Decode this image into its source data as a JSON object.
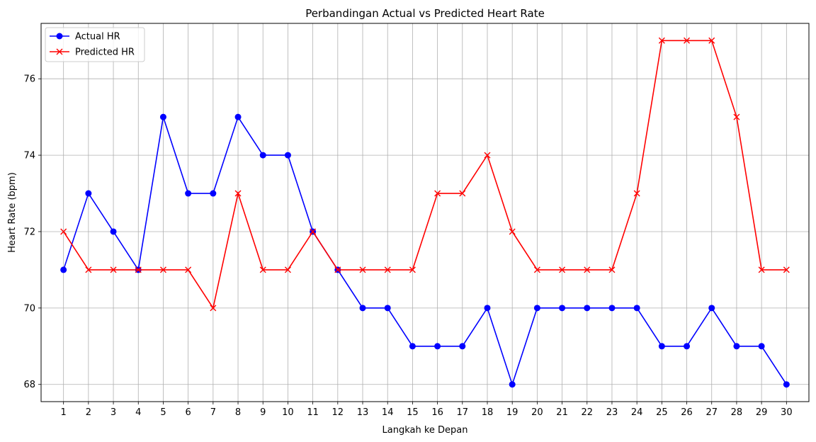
{
  "chart_data": {
    "type": "line",
    "title": "Perbandingan Actual vs Predicted Heart Rate",
    "xlabel": "Langkah ke Depan",
    "ylabel": "Heart Rate (bpm)",
    "x": [
      1,
      2,
      3,
      4,
      5,
      6,
      7,
      8,
      9,
      10,
      11,
      12,
      13,
      14,
      15,
      16,
      17,
      18,
      19,
      20,
      21,
      22,
      23,
      24,
      25,
      26,
      27,
      28,
      29,
      30
    ],
    "xlim": [
      0.1,
      30.9
    ],
    "ylim": [
      67.55,
      77.45
    ],
    "yticks": [
      68,
      70,
      72,
      74,
      76
    ],
    "grid": true,
    "legend_position": "upper-left",
    "series": [
      {
        "name": "Actual HR",
        "color": "#0000ff",
        "marker": "circle",
        "values": [
          71,
          73,
          72,
          71,
          75,
          73,
          73,
          75,
          74,
          74,
          72,
          71,
          70,
          70,
          69,
          69,
          69,
          70,
          68,
          70,
          70,
          70,
          70,
          70,
          69,
          69,
          70,
          69,
          69,
          68
        ]
      },
      {
        "name": "Predicted HR",
        "color": "#ff0000",
        "marker": "x",
        "values": [
          72,
          71,
          71,
          71,
          71,
          71,
          70,
          73,
          71,
          71,
          72,
          71,
          71,
          71,
          71,
          73,
          73,
          74,
          72,
          71,
          71,
          71,
          71,
          73,
          77,
          77,
          77,
          75,
          71,
          71
        ]
      }
    ]
  }
}
